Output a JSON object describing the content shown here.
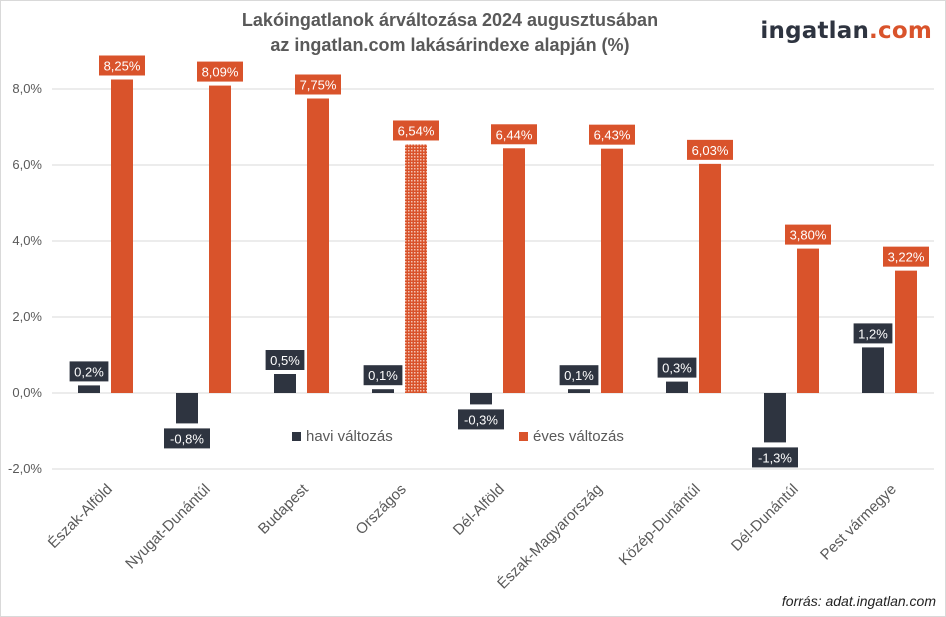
{
  "title_line1": "Lakóingatlanok árváltozása 2024 augusztusában",
  "title_line2": "az ingatlan.com lakásárindexe alapján (%)",
  "logo": {
    "name": "ingatlan",
    "dot": ".",
    "tld": "com"
  },
  "source": "forrás: adat.ingatlan.com",
  "colors": {
    "monthly": "#2e3440",
    "yearly": "#d9532b",
    "grid": "#d9d9d9",
    "highlight_pattern": "dotted"
  },
  "chart_data": {
    "type": "bar",
    "categories": [
      "Észak-Alföld",
      "Nyugat-Dunántúl",
      "Budapest",
      "Országos",
      "Dél-Alföld",
      "Észak-Magyarország",
      "Közép-Dunántúl",
      "Dél-Dunántúl",
      "Pest vármegye"
    ],
    "series": [
      {
        "name": "havi változás",
        "values": [
          0.2,
          -0.8,
          0.5,
          0.1,
          -0.3,
          0.1,
          0.3,
          -1.3,
          1.2
        ],
        "labels": [
          "0,2%",
          "-0,8%",
          "0,5%",
          "0,1%",
          "-0,3%",
          "0,1%",
          "0,3%",
          "-1,3%",
          "1,2%"
        ]
      },
      {
        "name": "éves változás",
        "values": [
          8.25,
          8.09,
          7.75,
          6.54,
          6.44,
          6.43,
          6.03,
          3.8,
          3.22
        ],
        "labels": [
          "8,25%",
          "8,09%",
          "7,75%",
          "6,54%",
          "6,44%",
          "6,43%",
          "6,03%",
          "3,80%",
          "3,22%"
        ]
      }
    ],
    "highlight_category": "Országos",
    "yticks": [
      -2,
      0,
      2,
      4,
      6,
      8
    ],
    "ytick_labels": [
      "-2,0%",
      "0,0%",
      "2,0%",
      "4,0%",
      "6,0%",
      "8,0%"
    ],
    "ylim": [
      -2,
      8.6
    ],
    "grid": true,
    "legend": "center"
  }
}
